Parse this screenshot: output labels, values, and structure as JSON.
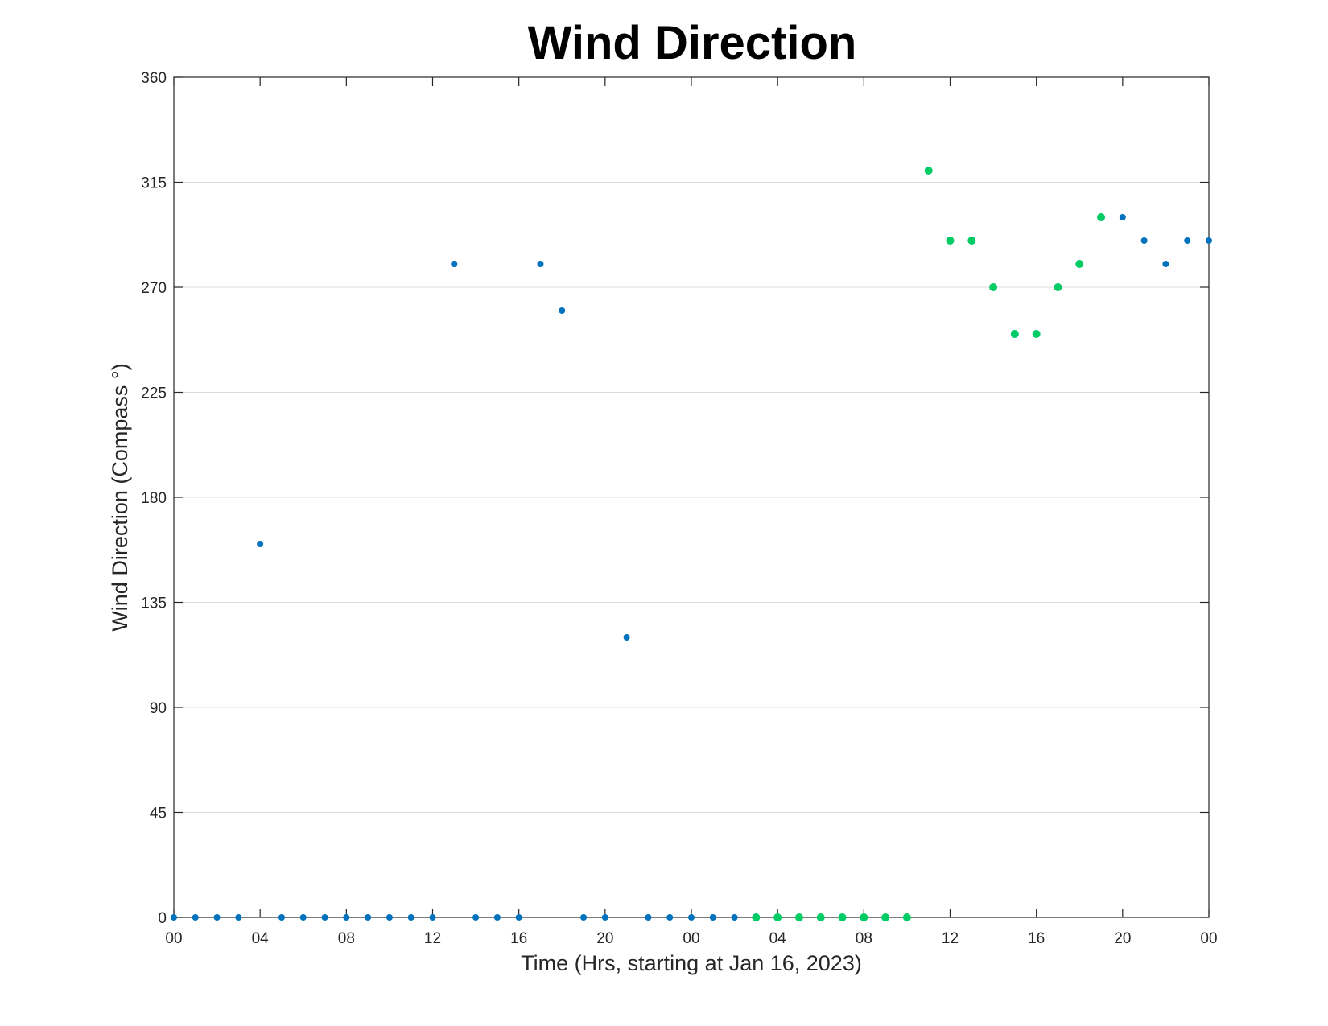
{
  "chart_data": {
    "type": "scatter",
    "title": "Wind Direction",
    "xlabel": "Time (Hrs, starting at Jan 16, 2023)",
    "ylabel": "Wind Direction (Compass °)",
    "x_unit": "hours",
    "xlim": [
      0,
      48
    ],
    "ylim": [
      0,
      360
    ],
    "x_ticks": [
      0,
      4,
      8,
      12,
      16,
      20,
      24,
      28,
      32,
      36,
      40,
      44,
      48
    ],
    "x_tick_labels": [
      "00",
      "04",
      "08",
      "12",
      "16",
      "20",
      "00",
      "04",
      "08",
      "12",
      "16",
      "20",
      "00"
    ],
    "y_ticks": [
      0,
      45,
      90,
      135,
      180,
      225,
      270,
      315,
      360
    ],
    "y_tick_labels": [
      "0",
      "45",
      "90",
      "135",
      "180",
      "225",
      "270",
      "315",
      "360"
    ],
    "grid": true,
    "series": [
      {
        "color": "#0072bd",
        "marker_size": 4,
        "points": [
          [
            0,
            0
          ],
          [
            1,
            0
          ],
          [
            2,
            0
          ],
          [
            3,
            0
          ],
          [
            4,
            160
          ],
          [
            5,
            0
          ],
          [
            6,
            0
          ],
          [
            7,
            0
          ],
          [
            8,
            0
          ],
          [
            9,
            0
          ],
          [
            10,
            0
          ],
          [
            11,
            0
          ],
          [
            12,
            0
          ],
          [
            13,
            280
          ],
          [
            14,
            0
          ],
          [
            15,
            0
          ],
          [
            16,
            0
          ],
          [
            17,
            280
          ],
          [
            18,
            260
          ],
          [
            19,
            0
          ],
          [
            20,
            0
          ],
          [
            21,
            120
          ],
          [
            22,
            0
          ],
          [
            23,
            0
          ],
          [
            24,
            0
          ],
          [
            25,
            0
          ],
          [
            26,
            0
          ],
          [
            44,
            300
          ],
          [
            45,
            290
          ],
          [
            46,
            280
          ],
          [
            47,
            290
          ],
          [
            48,
            290
          ]
        ]
      },
      {
        "color": "#00cc66",
        "marker_size": 5,
        "points": [
          [
            27,
            0
          ],
          [
            28,
            0
          ],
          [
            29,
            0
          ],
          [
            30,
            0
          ],
          [
            31,
            0
          ],
          [
            32,
            0
          ],
          [
            33,
            0
          ],
          [
            34,
            0
          ],
          [
            35,
            320
          ],
          [
            36,
            290
          ],
          [
            37,
            290
          ],
          [
            38,
            270
          ],
          [
            39,
            250
          ],
          [
            40,
            250
          ],
          [
            41,
            270
          ],
          [
            42,
            280
          ],
          [
            43,
            300
          ]
        ]
      }
    ]
  }
}
